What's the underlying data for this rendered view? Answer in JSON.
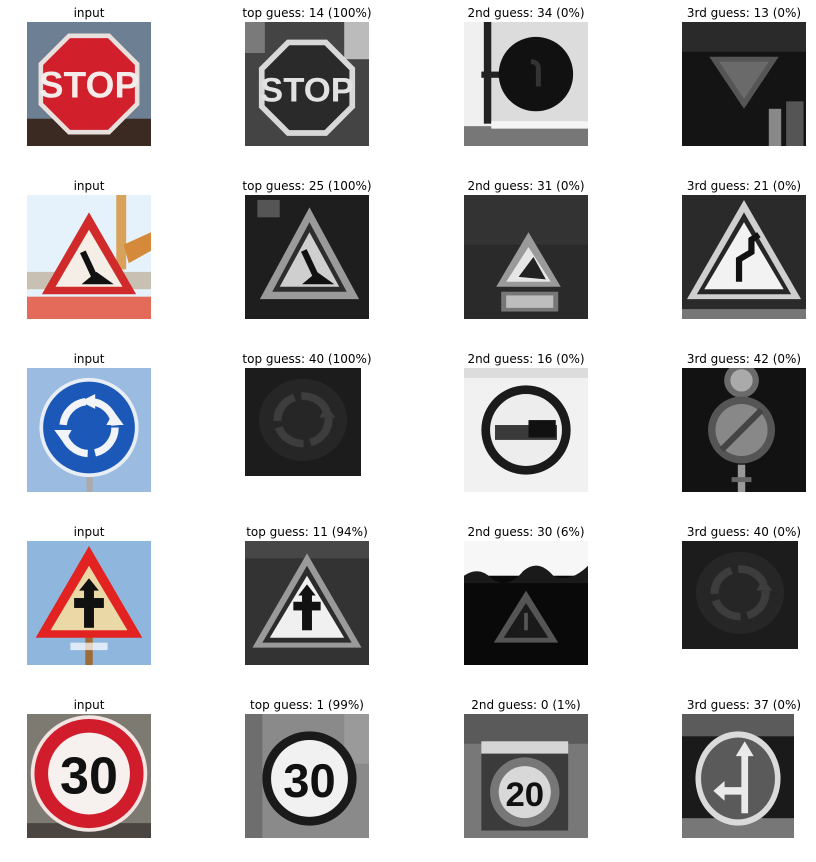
{
  "rows": [
    {
      "input_label": "input",
      "input_sign": "stop",
      "guesses": [
        {
          "label": "top guess: 14 (100%)",
          "sign": "stop"
        },
        {
          "label": "2nd guess: 34 (0%)",
          "sign": "turn-left-ahead"
        },
        {
          "label": "3rd guess: 13 (0%)",
          "sign": "yield"
        }
      ]
    },
    {
      "input_label": "input",
      "input_sign": "road-work",
      "guesses": [
        {
          "label": "top guess: 25 (100%)",
          "sign": "road-work"
        },
        {
          "label": "2nd guess: 31 (0%)",
          "sign": "wild-animals-crossing"
        },
        {
          "label": "3rd guess: 21 (0%)",
          "sign": "double-curve"
        }
      ]
    },
    {
      "input_label": "input",
      "input_sign": "roundabout",
      "guesses": [
        {
          "label": "top guess: 40 (100%)",
          "sign": "roundabout"
        },
        {
          "label": "2nd guess: 16 (0%)",
          "sign": "no-trucks"
        },
        {
          "label": "3rd guess: 42 (0%)",
          "sign": "end-no-passing-trucks"
        }
      ]
    },
    {
      "input_label": "input",
      "input_sign": "right-of-way",
      "guesses": [
        {
          "label": "top guess: 11 (94%)",
          "sign": "right-of-way"
        },
        {
          "label": "2nd guess: 30 (6%)",
          "sign": "ice-snow"
        },
        {
          "label": "3rd guess: 40 (0%)",
          "sign": "roundabout"
        }
      ]
    },
    {
      "input_label": "input",
      "input_sign": "speed-30",
      "guesses": [
        {
          "label": "top guess: 1 (99%)",
          "sign": "speed-30"
        },
        {
          "label": "2nd guess: 0 (1%)",
          "sign": "speed-20"
        },
        {
          "label": "3rd guess: 37 (0%)",
          "sign": "go-straight-or-left"
        }
      ]
    }
  ],
  "sign_text": {
    "stop": "STOP",
    "speed30": "30",
    "speed20": "20"
  }
}
